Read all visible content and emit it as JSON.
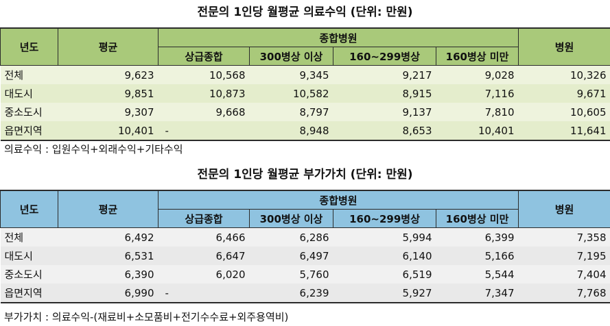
{
  "table1": {
    "title": "전문의 1인당 월평균 의료수익  (단위: 만원)",
    "headers": {
      "year": "년도",
      "avg": "평균",
      "general_hospital": "종합병원",
      "hospital": "병원",
      "sub": [
        "상급종합",
        "300병상 이상",
        "160~299병상",
        "160병상 미만"
      ]
    },
    "rows": [
      {
        "label": "전체",
        "values": [
          "9,623",
          "10,568",
          "9,345",
          "9,217",
          "9,028",
          "10,326"
        ]
      },
      {
        "label": "대도시",
        "values": [
          "9,851",
          "10,873",
          "10,582",
          "8,915",
          "7,116",
          "9,671"
        ]
      },
      {
        "label": "중소도시",
        "values": [
          "9,307",
          "9,668",
          "8,797",
          "9,137",
          "7,810",
          "10,605"
        ]
      },
      {
        "label": "읍면지역",
        "values": [
          "10,401",
          "-",
          "8,948",
          "8,653",
          "10,401",
          "11,641"
        ]
      }
    ],
    "note": "의료수익 : 입원수익+외래수익+기타수익"
  },
  "table2": {
    "title": "전문의 1인당 월평균 부가가치 (단위: 만원)",
    "headers": {
      "year": "년도",
      "avg": "평균",
      "general_hospital": "종합병원",
      "hospital": "병원",
      "sub": [
        "상급종합",
        "300병상 이상",
        "160~299병상",
        "160병상 미만"
      ]
    },
    "rows": [
      {
        "label": "전체",
        "values": [
          "6,492",
          "6,466",
          "6,286",
          "5,994",
          "6,399",
          "7,358"
        ]
      },
      {
        "label": "대도시",
        "values": [
          "6,531",
          "6,647",
          "6,497",
          "6,140",
          "5,166",
          "7,195"
        ]
      },
      {
        "label": "중소도시",
        "values": [
          "6,390",
          "6,020",
          "5,760",
          "6,519",
          "5,544",
          "7,404"
        ]
      },
      {
        "label": "읍면지역",
        "values": [
          "6,990",
          "-",
          "6,239",
          "5,927",
          "7,347",
          "7,768"
        ]
      }
    ],
    "note": "부가가치 : 의료수익-(재료비+소모품비+전기수수료+외주용역비)"
  },
  "colors": {
    "table1_header": "#a9c97a",
    "table1_body": "#eef3dd",
    "table2_header": "#8fc3e0",
    "table2_body": "#f1f1f1"
  }
}
